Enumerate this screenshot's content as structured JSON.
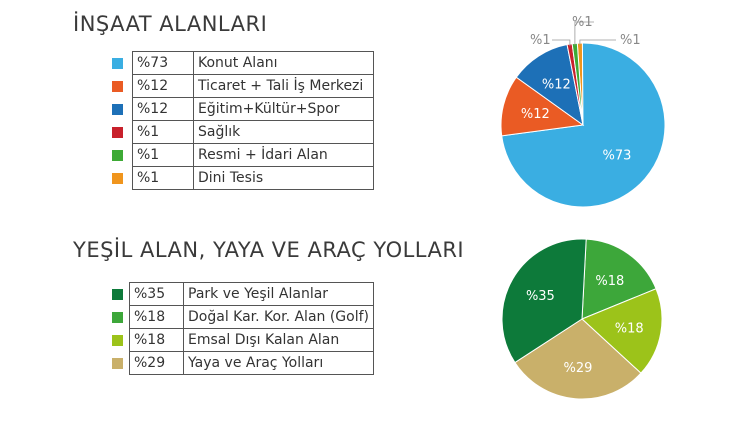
{
  "chart_data": [
    {
      "type": "pie",
      "title": "İNŞAAT ALANLARI",
      "slices": [
        {
          "label": "Konut Alanı",
          "pct_text": "%73",
          "value": 73,
          "color": "#3aaee2"
        },
        {
          "label": "Ticaret + Tali İş Merkezi",
          "pct_text": "%12",
          "value": 12,
          "color": "#ea5b24"
        },
        {
          "label": "Eğitim+Kültür+Spor",
          "pct_text": "%12",
          "value": 12,
          "color": "#1d70b7"
        },
        {
          "label": "Sağlık",
          "pct_text": "%1",
          "value": 1,
          "color": "#c8202b"
        },
        {
          "label": "Resmi  + İdari Alan",
          "pct_text": "%1",
          "value": 1,
          "color": "#3daa35"
        },
        {
          "label": "Dini Tesis",
          "pct_text": "%1",
          "value": 1,
          "color": "#f0951d"
        }
      ]
    },
    {
      "type": "pie",
      "title": "YEŞİL ALAN, YAYA VE ARAÇ YOLLARI",
      "slices": [
        {
          "label": "Park ve Yeşil Alanlar",
          "pct_text": "%35",
          "value": 35,
          "color": "#0d7a3a"
        },
        {
          "label": "Doğal Kar. Kor. Alan (Golf)",
          "pct_text": "%18",
          "value": 18,
          "color": "#3da73a"
        },
        {
          "label": "Emsal Dışı Kalan Alan",
          "pct_text": "%18",
          "value": 18,
          "color": "#9cc31a"
        },
        {
          "label": "Yaya ve Araç Yolları",
          "pct_text": "%29",
          "value": 29,
          "color": "#c9b06a"
        }
      ]
    }
  ]
}
